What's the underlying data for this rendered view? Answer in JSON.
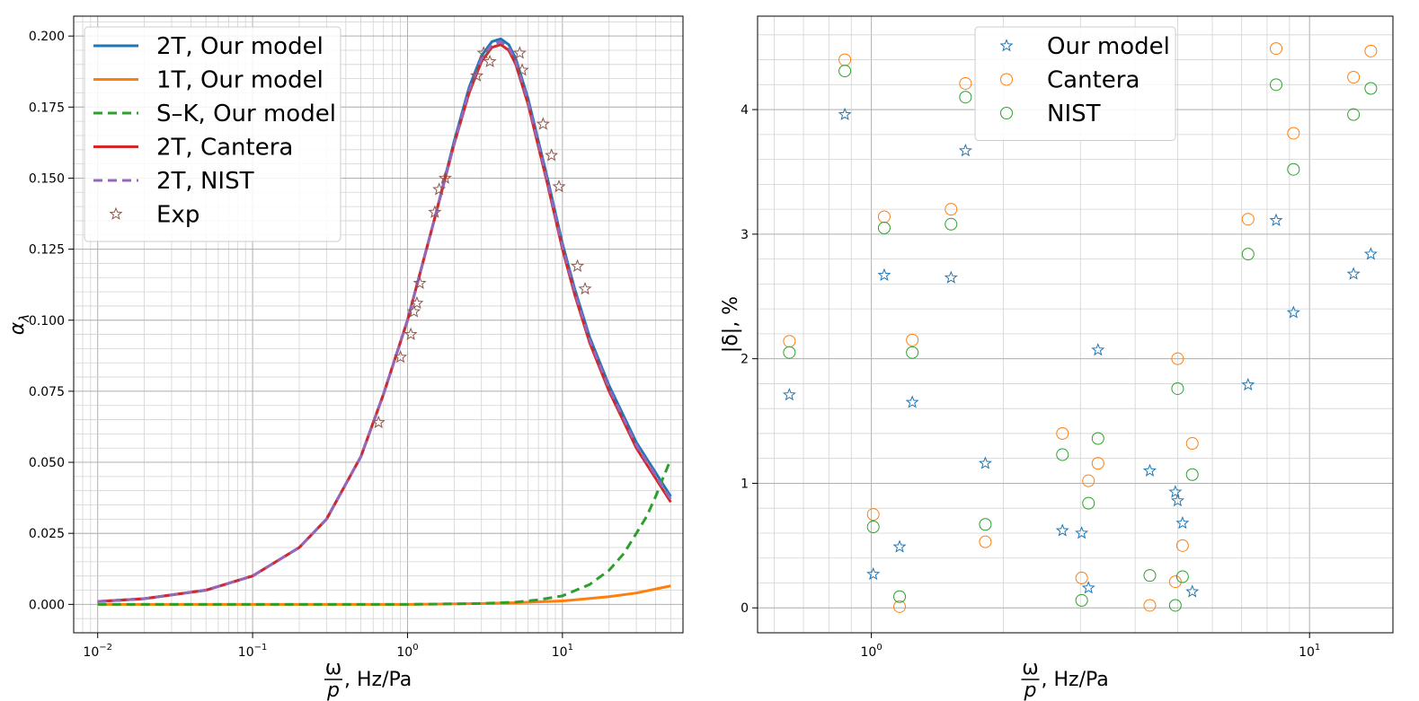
{
  "chart_data": [
    {
      "type": "line",
      "x_scale": "log",
      "xlim": [
        0.007,
        60
      ],
      "ylim": [
        -0.01,
        0.207
      ],
      "x_ticks": [
        0.01,
        0.1,
        1,
        10
      ],
      "x_tick_labels": [
        [
          "10",
          "−2"
        ],
        [
          "10",
          "−1"
        ],
        [
          "10",
          "0"
        ],
        [
          "10",
          "1"
        ]
      ],
      "y_ticks": [
        0,
        0.025,
        0.05,
        0.075,
        0.1,
        0.125,
        0.15,
        0.175,
        0.2
      ],
      "y_tick_labels": [
        "0.000",
        "0.025",
        "0.050",
        "0.075",
        "0.100",
        "0.125",
        "0.150",
        "0.175",
        "0.200"
      ],
      "xlabel": {
        "numerator": "ω",
        "denominator": "p",
        "unit": ", Hz/Pa"
      },
      "ylabel": {
        "base": "α",
        "sub": "λ"
      },
      "grid": true,
      "legend": "top-left",
      "series": [
        {
          "name": "2T, Our model",
          "color": "#1f77b4",
          "style": "solid",
          "x": [
            0.01,
            0.02,
            0.05,
            0.1,
            0.2,
            0.3,
            0.5,
            0.7,
            1.0,
            1.5,
            2.0,
            2.5,
            3.0,
            3.5,
            4.0,
            4.5,
            5.0,
            6.0,
            7.0,
            8.0,
            10.0,
            12.0,
            15.0,
            20.0,
            30.0,
            50.0
          ],
          "y": [
            0.001,
            0.002,
            0.005,
            0.01,
            0.02,
            0.03,
            0.052,
            0.074,
            0.1,
            0.136,
            0.163,
            0.182,
            0.193,
            0.198,
            0.199,
            0.197,
            0.192,
            0.178,
            0.163,
            0.15,
            0.127,
            0.111,
            0.094,
            0.077,
            0.057,
            0.038
          ]
        },
        {
          "name": "1T, Our model",
          "color": "#ff7f0e",
          "style": "solid",
          "x": [
            0.01,
            0.1,
            1.0,
            3.0,
            5.0,
            10.0,
            20.0,
            30.0,
            50.0
          ],
          "y": [
            0,
            0,
            0,
            0.0003,
            0.0006,
            0.0012,
            0.0027,
            0.004,
            0.0065
          ]
        },
        {
          "name": "S–K, Our model",
          "color": "#2ca02c",
          "style": "dashed",
          "x": [
            0.01,
            0.1,
            1.0,
            3.0,
            5.0,
            7.0,
            10.0,
            15.0,
            20.0,
            25.0,
            30.0,
            35.0,
            40.0,
            45.0,
            50.0
          ],
          "y": [
            0,
            0,
            0,
            0.0003,
            0.0008,
            0.0016,
            0.003,
            0.007,
            0.012,
            0.018,
            0.025,
            0.031,
            0.038,
            0.045,
            0.051
          ]
        },
        {
          "name": "2T, Cantera",
          "color": "#d62728",
          "style": "solid",
          "x": [
            0.01,
            0.02,
            0.05,
            0.1,
            0.2,
            0.3,
            0.5,
            0.7,
            1.0,
            1.5,
            2.0,
            2.5,
            3.0,
            3.5,
            4.0,
            4.5,
            5.0,
            6.0,
            7.0,
            8.0,
            10.0,
            12.0,
            15.0,
            20.0,
            30.0,
            50.0
          ],
          "y": [
            0.001,
            0.002,
            0.005,
            0.01,
            0.02,
            0.03,
            0.052,
            0.074,
            0.1,
            0.136,
            0.162,
            0.18,
            0.191,
            0.196,
            0.197,
            0.195,
            0.19,
            0.176,
            0.161,
            0.148,
            0.125,
            0.109,
            0.092,
            0.075,
            0.055,
            0.036
          ]
        },
        {
          "name": "2T, NIST",
          "color": "#9467bd",
          "style": "dashed",
          "x": [
            0.01,
            0.02,
            0.05,
            0.1,
            0.2,
            0.3,
            0.5,
            0.7,
            1.0,
            1.5,
            2.0,
            2.5,
            3.0,
            3.5,
            4.0,
            4.5,
            5.0,
            6.0,
            7.0,
            8.0,
            10.0,
            12.0,
            15.0,
            20.0,
            30.0,
            50.0
          ],
          "y": [
            0.001,
            0.002,
            0.005,
            0.01,
            0.02,
            0.03,
            0.052,
            0.074,
            0.1,
            0.136,
            0.162,
            0.181,
            0.192,
            0.197,
            0.198,
            0.196,
            0.191,
            0.177,
            0.162,
            0.149,
            0.126,
            0.11,
            0.093,
            0.076,
            0.056,
            0.037
          ]
        },
        {
          "name": "Exp",
          "color": "#8c564b",
          "style": "star",
          "x": [
            0.65,
            0.9,
            1.05,
            1.1,
            1.15,
            1.2,
            1.5,
            1.6,
            1.75,
            2.8,
            3.1,
            3.4,
            5.3,
            5.5,
            7.5,
            8.5,
            9.5,
            12.5,
            14.0
          ],
          "y": [
            0.064,
            0.087,
            0.095,
            0.103,
            0.106,
            0.113,
            0.138,
            0.146,
            0.15,
            0.186,
            0.194,
            0.191,
            0.194,
            0.188,
            0.169,
            0.158,
            0.147,
            0.119,
            0.111
          ]
        }
      ]
    },
    {
      "type": "scatter",
      "x_scale": "log",
      "xlim": [
        0.55,
        15.5
      ],
      "ylim": [
        -0.2,
        4.75
      ],
      "x_ticks": [
        1,
        10
      ],
      "x_tick_labels": [
        [
          "10",
          "0"
        ],
        [
          "10",
          "1"
        ]
      ],
      "y_ticks": [
        0,
        1,
        2,
        3,
        4
      ],
      "y_tick_labels": [
        "0",
        "1",
        "2",
        "3",
        "4"
      ],
      "xlabel": {
        "numerator": "ω",
        "denominator": "p",
        "unit": ", Hz/Pa"
      },
      "ylabel": {
        "text": "|δ|, %"
      },
      "grid": true,
      "legend": "top-center",
      "series": [
        {
          "name": "Our model",
          "color": "#1f77b4",
          "marker": "star",
          "x": [
            0.65,
            0.87,
            1.01,
            1.07,
            1.16,
            1.24,
            1.52,
            1.64,
            1.82,
            2.73,
            3.02,
            3.13,
            3.29,
            4.32,
            4.94,
            5.0,
            5.13,
            5.4,
            7.24,
            8.39,
            9.19,
            12.6,
            13.8
          ],
          "y": [
            1.71,
            3.96,
            0.27,
            2.67,
            0.49,
            1.65,
            2.65,
            3.67,
            1.16,
            0.62,
            0.6,
            0.16,
            2.07,
            1.1,
            0.93,
            0.86,
            0.68,
            0.13,
            1.79,
            3.11,
            2.37,
            2.68,
            2.84
          ]
        },
        {
          "name": "Cantera",
          "color": "#ff7f0e",
          "marker": "circle",
          "x": [
            0.65,
            0.87,
            1.01,
            1.07,
            1.16,
            1.24,
            1.52,
            1.64,
            1.82,
            2.73,
            3.02,
            3.13,
            3.29,
            4.32,
            4.94,
            5.0,
            5.13,
            5.4,
            7.24,
            8.39,
            9.19,
            12.6,
            13.8
          ],
          "y": [
            2.14,
            4.4,
            0.75,
            3.14,
            0.01,
            2.15,
            3.2,
            4.21,
            0.53,
            1.4,
            0.24,
            1.02,
            1.16,
            0.02,
            0.21,
            2.0,
            0.5,
            1.32,
            3.12,
            4.49,
            3.81,
            4.26,
            4.47
          ]
        },
        {
          "name": "NIST",
          "color": "#2ca02c",
          "marker": "circle",
          "x": [
            0.65,
            0.87,
            1.01,
            1.07,
            1.16,
            1.24,
            1.52,
            1.64,
            1.82,
            2.73,
            3.02,
            3.13,
            3.29,
            4.32,
            4.94,
            5.0,
            5.13,
            5.4,
            7.24,
            8.39,
            9.19,
            12.6,
            13.8
          ],
          "y": [
            2.05,
            4.31,
            0.65,
            3.05,
            0.09,
            2.05,
            3.08,
            4.1,
            0.67,
            1.23,
            0.06,
            0.84,
            1.36,
            0.26,
            0.02,
            1.76,
            0.25,
            1.07,
            2.84,
            4.2,
            3.52,
            3.96,
            4.17
          ]
        }
      ]
    }
  ]
}
